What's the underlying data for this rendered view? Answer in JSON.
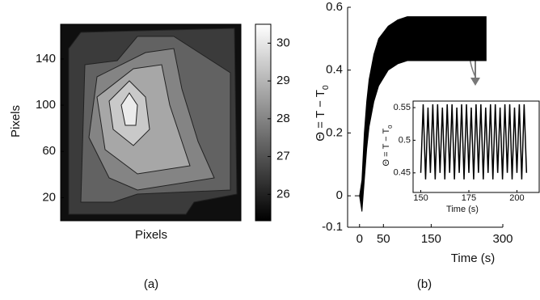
{
  "chart_data": [
    {
      "type": "contour",
      "xlabel": "Pixels",
      "ylabel": "Pixels",
      "caption": "(a)",
      "ylim": [
        0,
        170
      ],
      "yticks": [
        20,
        60,
        100,
        140
      ],
      "clim": [
        25.3,
        30.5
      ],
      "cticks": [
        26,
        27,
        28,
        29,
        30
      ],
      "levels": [
        25.6,
        26.5,
        27.3,
        28,
        28.7,
        29.4,
        30.1
      ]
    },
    {
      "type": "area",
      "xlabel": "Time (s)",
      "ylabel": {
        "text": "Θ = T − T",
        "sub": "0"
      },
      "caption": "(b)",
      "xlim": [
        -25,
        300
      ],
      "xticks": [
        0,
        50,
        150,
        300
      ],
      "ylim": [
        -0.1,
        0.6
      ],
      "yticks": [
        -0.1,
        0,
        0.2,
        0.4,
        0.6
      ],
      "series": [
        {
          "color": "#000000",
          "x": [
            -10,
            0,
            5,
            10,
            15,
            20,
            30,
            40,
            60,
            80,
            100,
            150,
            200,
            265
          ],
          "upper": [
            0,
            0,
            0.05,
            0.2,
            0.3,
            0.37,
            0.45,
            0.5,
            0.54,
            0.56,
            0.57,
            0.57,
            0.57,
            0.57
          ],
          "lower": [
            0,
            0,
            -0.05,
            0.05,
            0.15,
            0.22,
            0.3,
            0.35,
            0.4,
            0.42,
            0.43,
            0.43,
            0.43,
            0.43
          ]
        }
      ]
    },
    {
      "type": "line",
      "xlabel": "Time (s)",
      "ylabel": {
        "text": "Θ = T − T",
        "sub": "0"
      },
      "xlim": [
        146,
        212
      ],
      "xticks": [
        150,
        175,
        200
      ],
      "ylim": [
        0.42,
        0.56
      ],
      "yticks": [
        0.45,
        0.5,
        0.55
      ],
      "series": [
        {
          "color": "#000000",
          "x": [
            150,
            151.25,
            152.5,
            153.75,
            155,
            156.25,
            157.5,
            158.75,
            160,
            161.25,
            162.5,
            163.75,
            165,
            166.25,
            167.5,
            168.75,
            170,
            171.25,
            172.5,
            173.75,
            175,
            176.25,
            177.5,
            178.75,
            180,
            181.25,
            182.5,
            183.75,
            185,
            186.25,
            187.5,
            188.75,
            190,
            191.25,
            192.5,
            193.75,
            195,
            196.25,
            197.5,
            198.75,
            200,
            201.25,
            202.5,
            203.75,
            205
          ],
          "values": [
            0.45,
            0.555,
            0.44,
            0.55,
            0.45,
            0.555,
            0.44,
            0.555,
            0.45,
            0.55,
            0.44,
            0.555,
            0.45,
            0.555,
            0.44,
            0.55,
            0.45,
            0.555,
            0.44,
            0.555,
            0.45,
            0.55,
            0.44,
            0.555,
            0.45,
            0.555,
            0.44,
            0.55,
            0.45,
            0.555,
            0.44,
            0.555,
            0.45,
            0.55,
            0.44,
            0.555,
            0.45,
            0.555,
            0.44,
            0.55,
            0.45,
            0.555,
            0.44,
            0.555,
            0.45
          ]
        }
      ]
    }
  ]
}
